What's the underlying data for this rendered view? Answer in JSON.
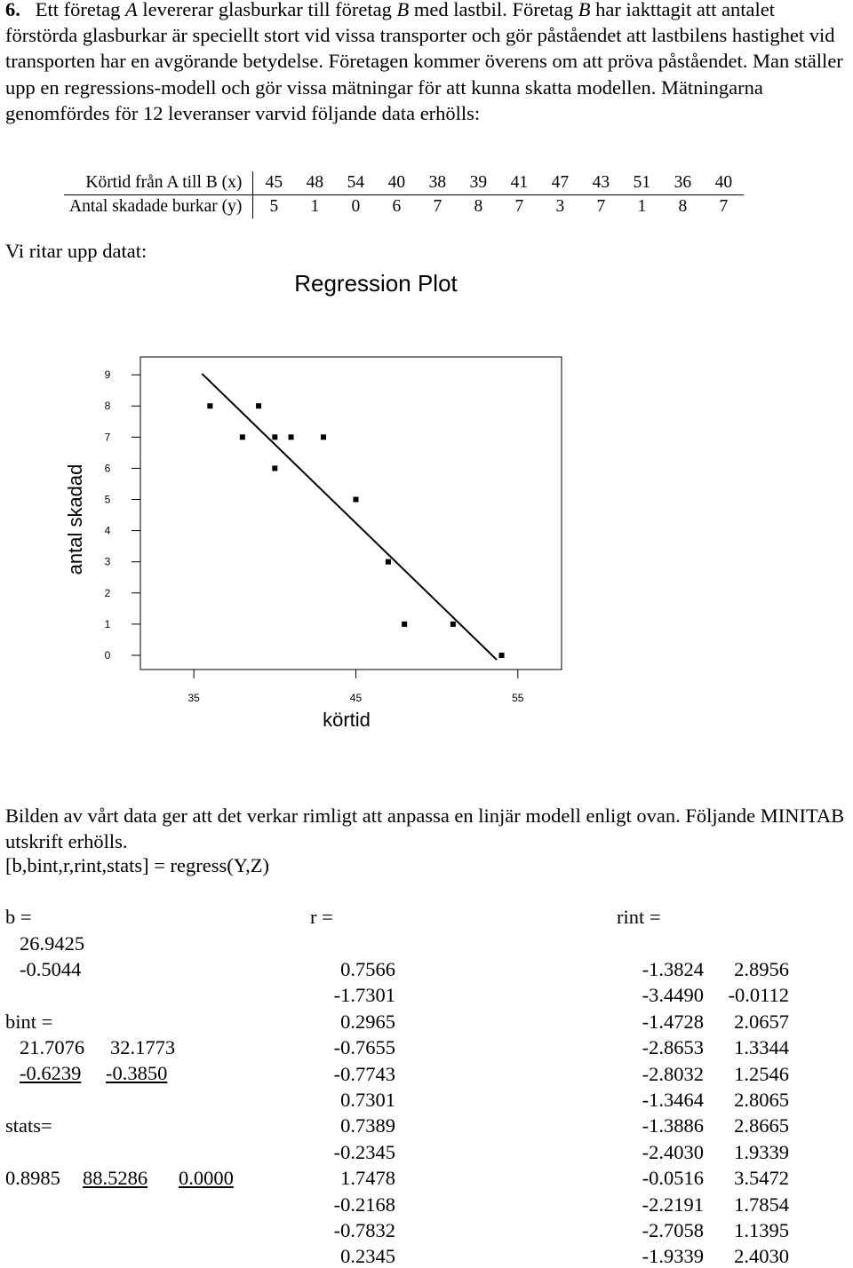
{
  "problem": {
    "number": "6.",
    "s1": "Ett företag ",
    "A": "A",
    "s2": " levererar glasburkar till företag ",
    "B": "B",
    "s3": " med lastbil. Företag ",
    "B2": "B",
    "s4": " har iakttagit att antalet förstörda glasburkar är speciellt stort vid vissa transporter och gör påståendet att lastbilens hastighet vid transporten har en avgörande betydelse. Företagen kommer överens om att pröva påståendet. Man ställer upp en regressions-modell och gör vissa mätningar för att kunna skatta modellen. Mätningarna genomfördes för 12 leveranser varvid följande data erhölls:"
  },
  "table": {
    "row1_label": "Körtid från A till B  (x)",
    "row2_label": "Antal skadade burkar  (y)",
    "x": [
      "45",
      "48",
      "54",
      "40",
      "38",
      "39",
      "41",
      "47",
      "43",
      "51",
      "36",
      "40"
    ],
    "y": [
      "5",
      "1",
      "0",
      "6",
      "7",
      "8",
      "7",
      "3",
      "7",
      "1",
      "8",
      "7"
    ]
  },
  "plot_intro": "Vi ritar upp datat:",
  "chart_data": {
    "type": "scatter",
    "title": "Regression Plot",
    "xlabel": "körtid",
    "ylabel": "antal skadad",
    "x_ticks": [
      "35",
      "45",
      "55"
    ],
    "y_ticks": [
      "0",
      "1",
      "2",
      "3",
      "4",
      "5",
      "6",
      "7",
      "8",
      "9"
    ],
    "xlim": [
      35,
      55
    ],
    "ylim": [
      0,
      9
    ],
    "points": [
      {
        "x": 45,
        "y": 5
      },
      {
        "x": 48,
        "y": 1
      },
      {
        "x": 54,
        "y": 0
      },
      {
        "x": 40,
        "y": 6
      },
      {
        "x": 38,
        "y": 7
      },
      {
        "x": 39,
        "y": 8
      },
      {
        "x": 41,
        "y": 7
      },
      {
        "x": 47,
        "y": 3
      },
      {
        "x": 43,
        "y": 7
      },
      {
        "x": 51,
        "y": 1
      },
      {
        "x": 36,
        "y": 8
      },
      {
        "x": 40,
        "y": 7
      }
    ],
    "fit_line": {
      "intercept": 26.9425,
      "slope": -0.5044
    }
  },
  "after_plot": {
    "line1": "Bilden av vårt data ger att det verkar rimligt att anpassa en linjär modell enligt ovan. Följande MINITAB utskrift erhölls.",
    "line2": "[b,bint,r,rint,stats] = regress(Y,Z)"
  },
  "output": {
    "b_label": "b =",
    "b": [
      "26.9425",
      "-0.5044"
    ],
    "bint_label": "bint =",
    "bint": [
      [
        "21.7076",
        "32.1773"
      ],
      [
        "-0.6239",
        "-0.3850"
      ]
    ],
    "stats_label": "stats=",
    "stats": [
      "0.8985",
      "88.5286",
      "0.0000"
    ],
    "r_label": "r =",
    "r": [
      "0.7566",
      "-1.7301",
      "0.2965",
      "-0.7655",
      "-0.7743",
      "0.7301",
      "0.7389",
      "-0.2345",
      "1.7478",
      "-0.2168",
      "-0.7832",
      "0.2345"
    ],
    "rint_label": "rint =",
    "rint": [
      [
        "-1.3824",
        "2.8956"
      ],
      [
        "-3.4490",
        "-0.0112"
      ],
      [
        "-1.4728",
        "2.0657"
      ],
      [
        "-2.8653",
        "1.3344"
      ],
      [
        "-2.8032",
        "1.2546"
      ],
      [
        "-1.3464",
        "2.8065"
      ],
      [
        "-1.3886",
        "2.8665"
      ],
      [
        "-2.4030",
        "1.9339"
      ],
      [
        "-0.0516",
        "3.5472"
      ],
      [
        "-2.2191",
        "1.7854"
      ],
      [
        "-2.7058",
        "1.1395"
      ],
      [
        "-1.9339",
        "2.4030"
      ]
    ]
  }
}
